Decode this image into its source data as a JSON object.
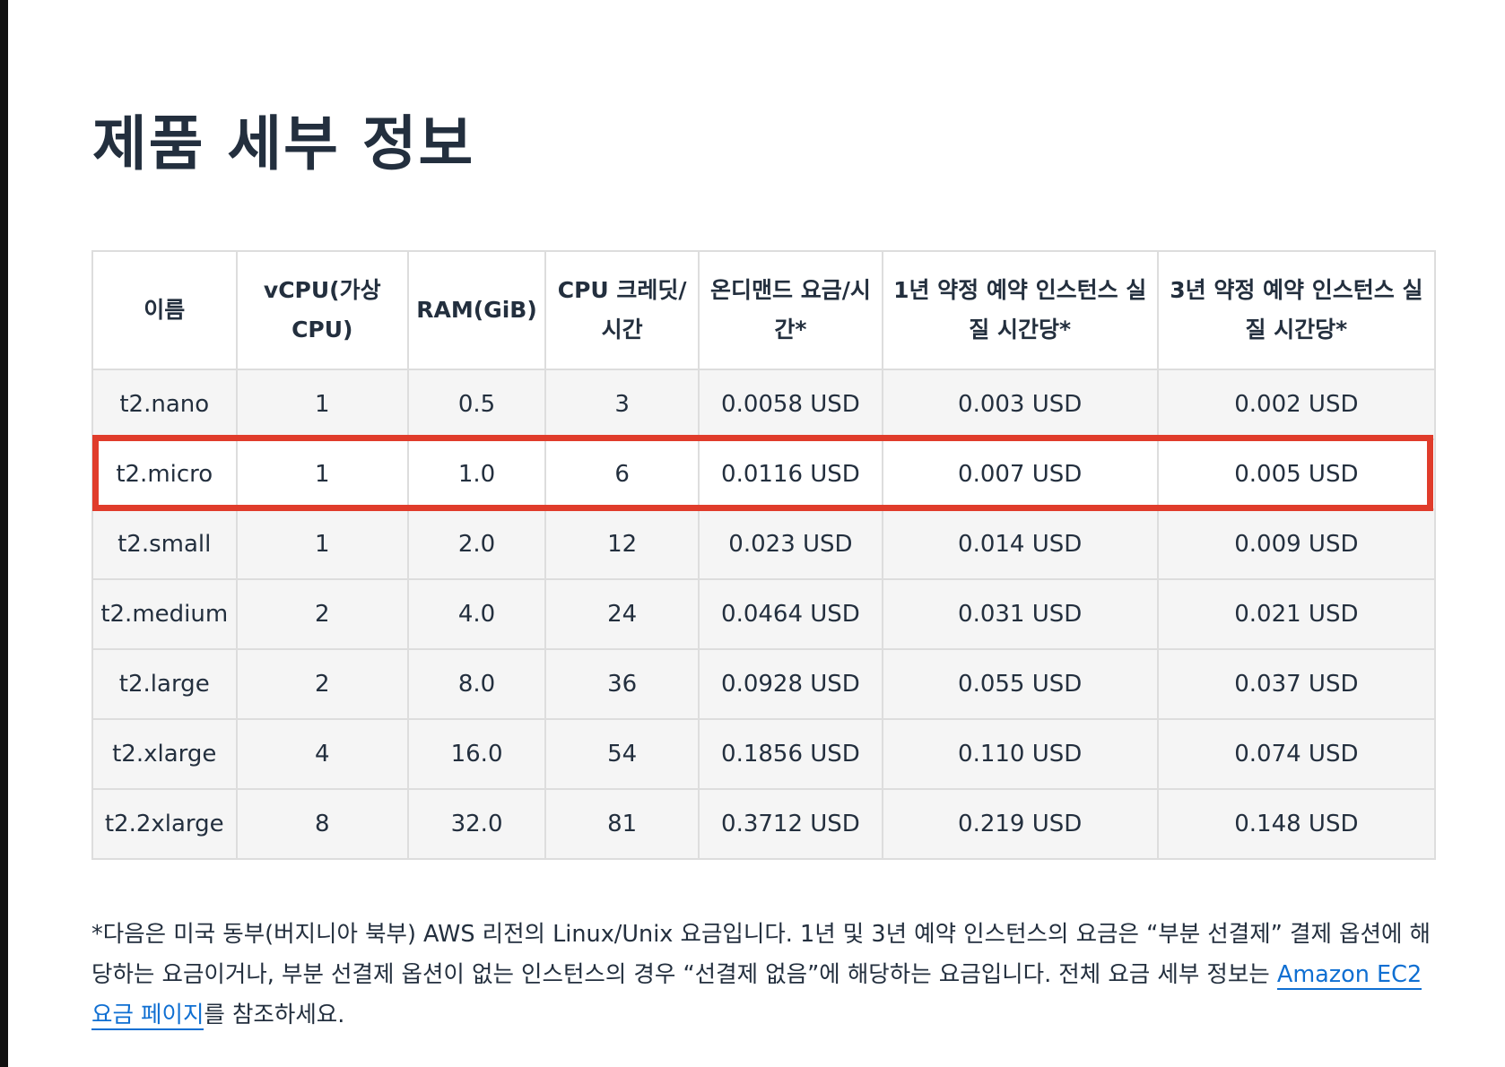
{
  "title": "제품 세부 정보",
  "table": {
    "headers": [
      "이름",
      "vCPU(가상 CPU)",
      "RAM(GiB)",
      "CPU 크레딧/시간",
      "온디맨드 요금/시간*",
      "1년 약정 예약 인스턴스 실질 시간당*",
      "3년 약정 예약 인스턴스 실질 시간당*"
    ],
    "rows": [
      [
        "t2.nano",
        "1",
        "0.5",
        "3",
        "0.0058 USD",
        "0.003 USD",
        "0.002 USD"
      ],
      [
        "t2.micro",
        "1",
        "1.0",
        "6",
        "0.0116 USD",
        "0.007 USD",
        "0.005 USD"
      ],
      [
        "t2.small",
        "1",
        "2.0",
        "12",
        "0.023 USD",
        "0.014 USD",
        "0.009 USD"
      ],
      [
        "t2.medium",
        "2",
        "4.0",
        "24",
        "0.0464 USD",
        "0.031 USD",
        "0.021 USD"
      ],
      [
        "t2.large",
        "2",
        "8.0",
        "36",
        "0.0928 USD",
        "0.055 USD",
        "0.037 USD"
      ],
      [
        "t2.xlarge",
        "4",
        "16.0",
        "54",
        "0.1856 USD",
        "0.110 USD",
        "0.074 USD"
      ],
      [
        "t2.2xlarge",
        "8",
        "32.0",
        "81",
        "0.3712 USD",
        "0.219 USD",
        "0.148 USD"
      ]
    ],
    "highlighted_row": "t2.micro",
    "highlight_color": "#e03c2b"
  },
  "footnote": {
    "text_before": "*다음은 미국 동부(버지니아 북부) AWS 리전의 Linux/Unix 요금입니다. 1년 및 3년 예약 인스턴스의 요금은 “부분 선결제” 결제 옵션에 해당하는 요금이거나, 부분 선결제 옵션이 없는 인스턴스의 경우 “선결제 없음”에 해당하는 요금입니다. 전체 요금 세부 정보는 ",
    "link_text": "Amazon EC2 요금 페이지",
    "text_after": "를 참조하세요."
  },
  "colors": {
    "text": "#232f3e",
    "link": "#0f6fd2",
    "row_bg": "#f5f5f5",
    "border": "#dddddd"
  }
}
